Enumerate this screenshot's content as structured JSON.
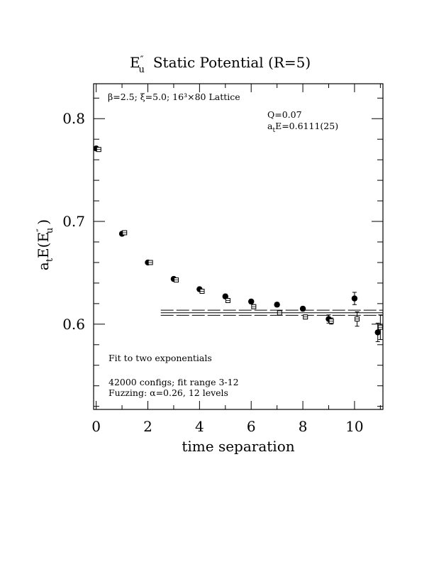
{
  "chart_data": {
    "type": "scatter",
    "title": {
      "part1": "E",
      "sup": "″",
      "sub": "u",
      "part2": "Static Potential (R=5)"
    },
    "xlabel": "time separation",
    "ylabel": {
      "prefix": "a",
      "sub1": "t",
      "mid": "E(E",
      "sup": "″",
      "sub2": "u",
      "suffix": ")"
    },
    "xlim": [
      -0.1,
      11.1
    ],
    "ylim": [
      0.517,
      0.834
    ],
    "xticks": [
      0,
      2,
      4,
      6,
      8,
      10
    ],
    "xtick_labels": [
      "0",
      "2",
      "4",
      "6",
      "8",
      "10"
    ],
    "yticks": [
      0.6,
      0.7,
      0.8
    ],
    "ytick_labels": [
      "0.6",
      "0.7",
      "0.8"
    ],
    "annotations": {
      "lattice": "β=2.5; ξ=5.0; 16³×80 Lattice",
      "q": "Q=0.07",
      "energy_prefix": "a",
      "energy_sub": "t",
      "energy_rest": "E=0.6111(25)",
      "fit_type": "Fit to two exponentials",
      "configs": "42000 configs; fit range 3-12",
      "fuzzing": "Fuzzing: α=0.26, 12 levels"
    },
    "fit": {
      "value": 0.6111,
      "error": 0.0025,
      "x_start": 2.5,
      "x_end": 11.1
    },
    "series": [
      {
        "marker": "filled-circle",
        "points": [
          {
            "x": 0,
            "y": 0.771,
            "err": 0.001
          },
          {
            "x": 1,
            "y": 0.688,
            "err": 0.001
          },
          {
            "x": 2,
            "y": 0.66,
            "err": 0.001
          },
          {
            "x": 3,
            "y": 0.644,
            "err": 0.001
          },
          {
            "x": 4,
            "y": 0.634,
            "err": 0.001
          },
          {
            "x": 5,
            "y": 0.627,
            "err": 0.002
          },
          {
            "x": 6,
            "y": 0.622,
            "err": 0.002
          },
          {
            "x": 7,
            "y": 0.619,
            "err": 0.002
          },
          {
            "x": 8,
            "y": 0.615,
            "err": 0.002
          },
          {
            "x": 9,
            "y": 0.605,
            "err": 0.004
          },
          {
            "x": 10,
            "y": 0.625,
            "err": 0.006
          },
          {
            "x": 10.9,
            "y": 0.592,
            "err": 0.009
          }
        ]
      },
      {
        "marker": "open-square",
        "points": [
          {
            "x": 0.1,
            "y": 0.77,
            "err": 0.001
          },
          {
            "x": 1.1,
            "y": 0.689,
            "err": 0.001
          },
          {
            "x": 2.1,
            "y": 0.66,
            "err": 0.001
          },
          {
            "x": 3.1,
            "y": 0.643,
            "err": 0.001
          },
          {
            "x": 4.1,
            "y": 0.632,
            "err": 0.001
          },
          {
            "x": 5.1,
            "y": 0.623,
            "err": 0.002
          },
          {
            "x": 6.1,
            "y": 0.617,
            "err": 0.002
          },
          {
            "x": 7.1,
            "y": 0.611,
            "err": 0.002
          },
          {
            "x": 8.1,
            "y": 0.607,
            "err": 0.002
          },
          {
            "x": 9.1,
            "y": 0.603,
            "err": 0.003
          },
          {
            "x": 10.1,
            "y": 0.605,
            "err": 0.007
          },
          {
            "x": 11.0,
            "y": 0.597,
            "err": 0.012
          }
        ]
      }
    ]
  }
}
